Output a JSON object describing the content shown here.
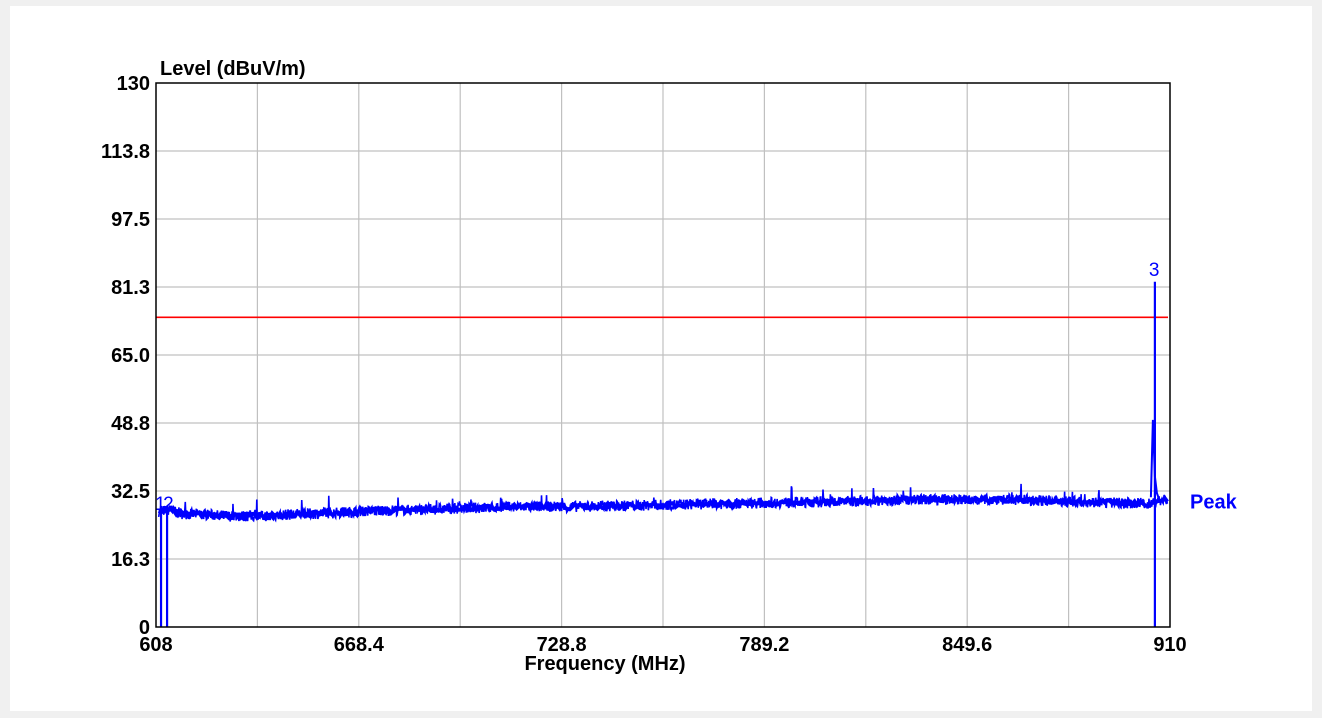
{
  "chart_data": {
    "type": "line",
    "ylabel": "Level (dBuV/m)",
    "xlabel": "Frequency (MHz)",
    "xlim": [
      608,
      910
    ],
    "ylim": [
      0,
      130
    ],
    "x_ticks": [
      "608",
      "668.4",
      "728.8",
      "789.2",
      "849.6",
      "910"
    ],
    "y_ticks": [
      "0",
      "16.3",
      "32.5",
      "48.8",
      "65.0",
      "81.3",
      "97.5",
      "113.8",
      "130"
    ],
    "grid": true,
    "limit_line": {
      "value": 74,
      "color": "#ff0000"
    },
    "series": [
      {
        "name": "Peak",
        "color": "#0000ff",
        "x": [
          608,
          612,
          616,
          620,
          630,
          640,
          650,
          660,
          670,
          680,
          690,
          700,
          710,
          720,
          730,
          740,
          750,
          760,
          770,
          780,
          790,
          800,
          810,
          820,
          830,
          840,
          850,
          860,
          870,
          880,
          890,
          896,
          900,
          904,
          906,
          908,
          910
        ],
        "y": [
          27.5,
          28.0,
          27.0,
          27.0,
          26.5,
          26.5,
          27.0,
          27.2,
          27.7,
          27.9,
          28.1,
          28.4,
          28.6,
          28.8,
          28.7,
          28.9,
          29.0,
          29.2,
          29.4,
          29.5,
          29.7,
          29.8,
          29.9,
          30.2,
          30.4,
          30.5,
          30.4,
          30.5,
          30.3,
          30.0,
          29.8,
          29.6,
          29.6,
          29.5,
          30.0,
          30.5,
          30.0
        ]
      }
    ],
    "markers": [
      {
        "label": "1",
        "x": 609.5,
        "y": 0
      },
      {
        "label": "2",
        "x": 611.3,
        "y": 0
      },
      {
        "label": "3",
        "x": 905.5,
        "y": 82.5
      }
    ]
  }
}
